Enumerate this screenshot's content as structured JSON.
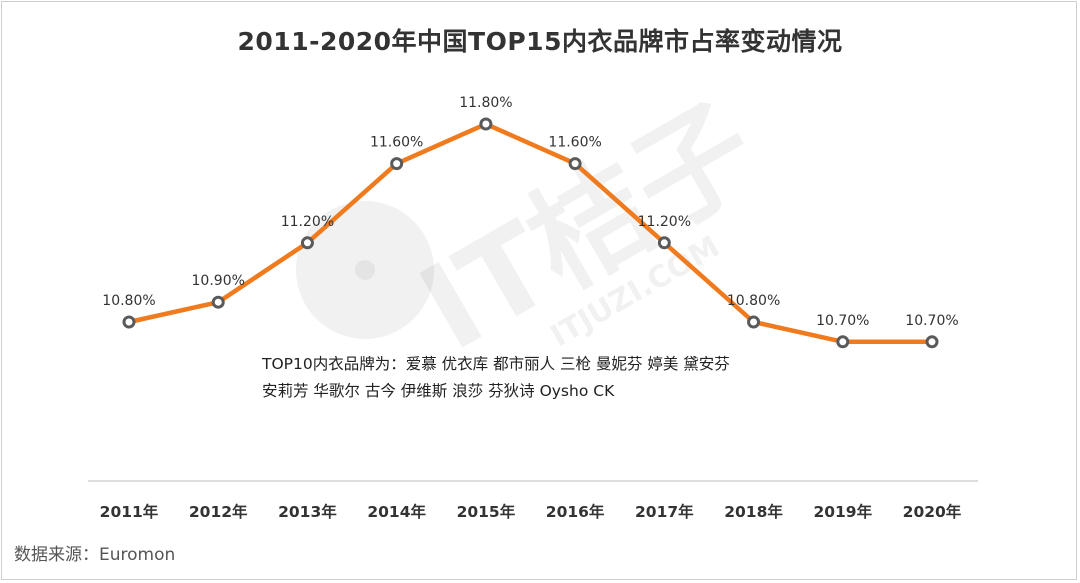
{
  "chart_data": {
    "type": "line",
    "title": "2011-2020年中国TOP15内衣品牌市占率变动情况",
    "categories": [
      "2011年",
      "2012年",
      "2013年",
      "2014年",
      "2015年",
      "2016年",
      "2017年",
      "2018年",
      "2019年",
      "2020年"
    ],
    "values": [
      10.8,
      10.9,
      11.2,
      11.6,
      11.8,
      11.6,
      11.2,
      10.8,
      10.7,
      10.7
    ],
    "value_labels": [
      "10.80%",
      "10.90%",
      "11.20%",
      "11.60%",
      "11.80%",
      "11.60%",
      "11.20%",
      "10.80%",
      "10.70%",
      "10.70%"
    ],
    "ylim": [
      10.3,
      11.8
    ],
    "xlabel": "",
    "ylabel": "",
    "grid": false,
    "line_color": "#F07A1E",
    "marker_color": "#5a5a5a",
    "annotation": {
      "line1": "TOP10内衣品牌为：爱慕  优衣库  都市丽人  三枪  曼妮芬  婷美  黛安芬",
      "line2": "安莉芳  华歌尔  古今  伊维斯  浪莎  芬狄诗  Oysho CK"
    }
  },
  "source": "数据来源：Euromon",
  "watermark": {
    "main": "IT桔子",
    "sub": "ITJUZI.COM"
  }
}
